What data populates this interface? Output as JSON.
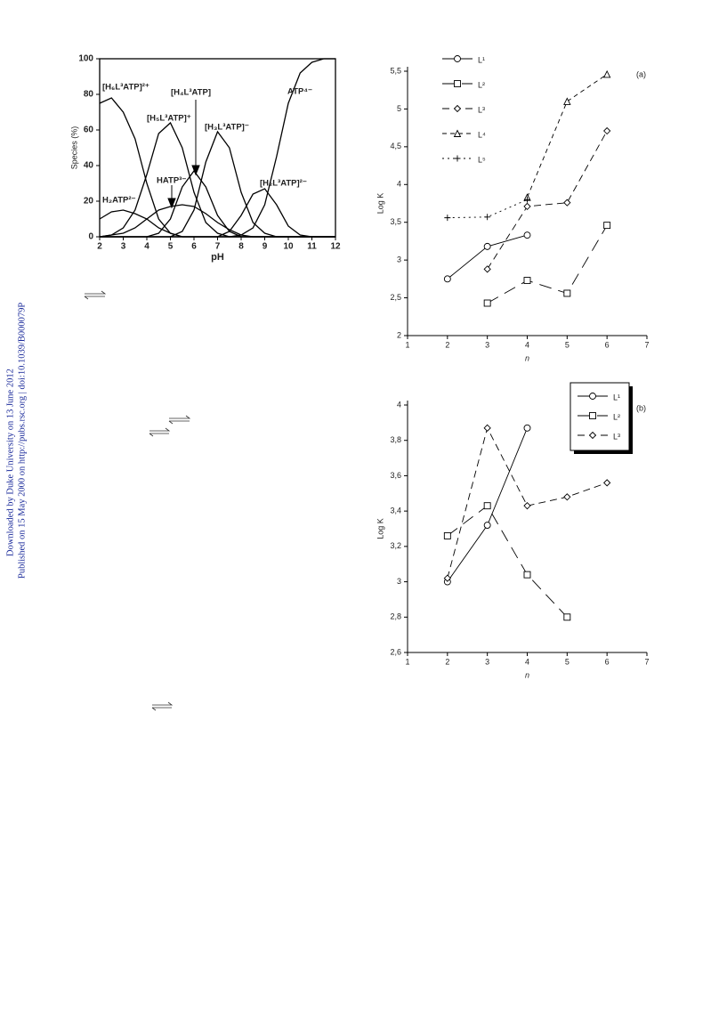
{
  "margin_text": [
    "Downloaded by Duke University on 13 June 2012",
    "Published on 15 May 2000 on http://pubs.rsc.org | doi:10.1039/B000079P"
  ],
  "chart_data": [
    {
      "type": "line",
      "xlabel": "pH",
      "ylabel": "Species (%)",
      "x": [
        2,
        2.5,
        3,
        3.5,
        4,
        4.5,
        5,
        5.5,
        6,
        6.5,
        7,
        7.5,
        8,
        8.5,
        9,
        9.5,
        10,
        10.5,
        11,
        11.5,
        12
      ],
      "xlim": [
        2,
        12
      ],
      "xticks": [
        2,
        3,
        4,
        5,
        6,
        7,
        8,
        9,
        10,
        11,
        12
      ],
      "ylim": [
        0,
        100
      ],
      "yticks": [
        0,
        20,
        40,
        60,
        80,
        100
      ],
      "series": [
        {
          "name": "[H₆L³ATP]²⁺",
          "color": "#000000",
          "values": [
            75,
            78,
            70,
            55,
            30,
            10,
            2,
            0,
            0,
            0,
            0,
            0,
            0,
            0,
            0,
            0,
            0,
            0,
            0,
            0,
            0
          ]
        },
        {
          "name": "H₂ATP²⁻",
          "color": "#000000",
          "values": [
            10,
            14,
            15,
            13,
            10,
            5,
            2,
            0,
            0,
            0,
            0,
            0,
            0,
            0,
            0,
            0,
            0,
            0,
            0,
            0,
            0
          ]
        },
        {
          "name": "[H₅L³ATP]⁺",
          "color": "#000000",
          "values": [
            0,
            1,
            5,
            15,
            35,
            58,
            64,
            50,
            25,
            8,
            2,
            0,
            0,
            0,
            0,
            0,
            0,
            0,
            0,
            0,
            0
          ]
        },
        {
          "name": "HATP³⁻",
          "color": "#000000",
          "values": [
            0,
            1,
            2,
            5,
            10,
            15,
            17,
            18,
            17,
            13,
            8,
            4,
            1,
            0,
            0,
            0,
            0,
            0,
            0,
            0,
            0
          ]
        },
        {
          "name": "[H₄L³ATP]",
          "color": "#000000",
          "values": [
            0,
            0,
            0,
            0,
            0,
            2,
            10,
            28,
            37,
            28,
            12,
            3,
            0,
            0,
            0,
            0,
            0,
            0,
            0,
            0,
            0
          ]
        },
        {
          "name": "[H₃L³ATP]⁻",
          "color": "#000000",
          "values": [
            0,
            0,
            0,
            0,
            0,
            0,
            0,
            3,
            15,
            42,
            59,
            50,
            25,
            8,
            2,
            0,
            0,
            0,
            0,
            0,
            0
          ]
        },
        {
          "name": "[H₂L³ATP]²⁻",
          "color": "#000000",
          "values": [
            0,
            0,
            0,
            0,
            0,
            0,
            0,
            0,
            0,
            0,
            0,
            3,
            12,
            24,
            27,
            18,
            6,
            1,
            0,
            0,
            0
          ]
        },
        {
          "name": "ATP⁴⁻",
          "color": "#000000",
          "values": [
            0,
            0,
            0,
            0,
            0,
            0,
            0,
            0,
            0,
            0,
            0,
            0,
            1,
            5,
            18,
            45,
            75,
            92,
            98,
            100,
            100
          ]
        }
      ]
    },
    {
      "type": "line",
      "label": "(a)",
      "xlabel": "n",
      "ylabel": "Log K",
      "x": [
        2,
        3,
        4,
        5,
        6
      ],
      "xlim": [
        1,
        7
      ],
      "xticks": [
        1,
        2,
        3,
        4,
        5,
        6,
        7
      ],
      "ylim": [
        2,
        5.5
      ],
      "yticks": [
        2,
        {
          "value": 2.5,
          "label": "2,5"
        },
        3,
        {
          "value": 3.5,
          "label": "3,5"
        },
        4,
        {
          "value": 4.5,
          "label": "4,5"
        },
        5,
        {
          "value": 5.5,
          "label": "5,5"
        }
      ],
      "legend_box": false,
      "series": [
        {
          "name": "L¹",
          "color": "#000000",
          "marker": "circle",
          "dash": "none",
          "values": [
            2.75,
            3.18,
            3.33,
            null,
            null
          ]
        },
        {
          "name": "L²",
          "color": "#000000",
          "marker": "square",
          "dash": "14 8",
          "values": [
            null,
            2.43,
            2.73,
            2.56,
            3.46
          ]
        },
        {
          "name": "L³",
          "color": "#000000",
          "marker": "diamond",
          "dash": "8 5",
          "values": [
            null,
            2.88,
            3.71,
            3.76,
            4.71
          ]
        },
        {
          "name": "L⁴",
          "color": "#000000",
          "marker": "triangle",
          "dash": "5 4",
          "values": [
            null,
            null,
            3.83,
            5.1,
            5.46
          ]
        },
        {
          "name": "L⁵",
          "color": "#000000",
          "marker": "plus",
          "dash": "2 4",
          "values": [
            3.56,
            3.57,
            3.8,
            null,
            null
          ]
        }
      ]
    },
    {
      "type": "line",
      "label": "(b)",
      "xlabel": "n",
      "ylabel": "Log K",
      "x": [
        2,
        3,
        4,
        5,
        6
      ],
      "xlim": [
        1,
        7
      ],
      "xticks": [
        1,
        2,
        3,
        4,
        5,
        6,
        7
      ],
      "ylim": [
        2.6,
        4
      ],
      "yticks": [
        {
          "value": 2.6,
          "label": "2,6"
        },
        {
          "value": 2.8,
          "label": "2,8"
        },
        3,
        {
          "value": 3.2,
          "label": "3,2"
        },
        {
          "value": 3.4,
          "label": "3,4"
        },
        {
          "value": 3.6,
          "label": "3,6"
        },
        {
          "value": 3.8,
          "label": "3,8"
        },
        4
      ],
      "legend_box": true,
      "series": [
        {
          "name": "L¹",
          "color": "#000000",
          "marker": "circle",
          "dash": "none",
          "values": [
            3.0,
            3.32,
            3.87,
            null,
            null
          ]
        },
        {
          "name": "L²",
          "color": "#000000",
          "marker": "square",
          "dash": "14 8",
          "values": [
            3.26,
            3.43,
            3.04,
            2.8,
            null
          ]
        },
        {
          "name": "L³",
          "color": "#000000",
          "marker": "diamond",
          "dash": "8 5",
          "values": [
            3.02,
            3.87,
            3.43,
            3.48,
            3.56
          ]
        }
      ]
    }
  ]
}
